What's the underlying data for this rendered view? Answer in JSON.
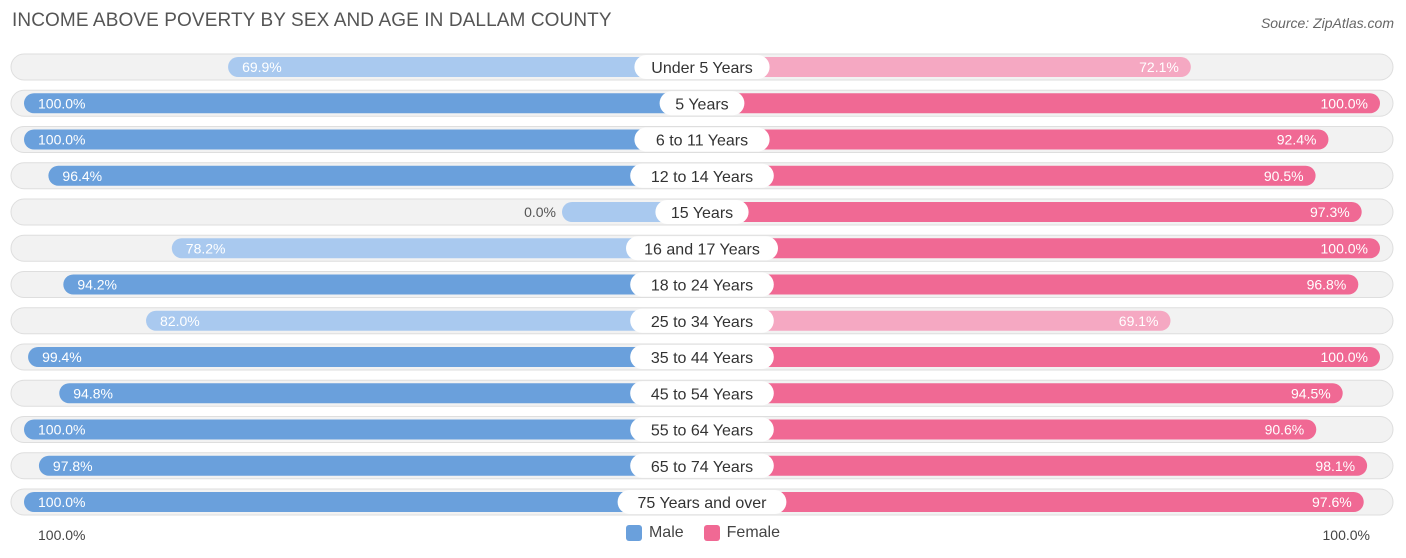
{
  "title": "INCOME ABOVE POVERTY BY SEX AND AGE IN DALLAM COUNTY",
  "source": "Source: ZipAtlas.com",
  "axis": {
    "left_label": "100.0%",
    "right_label": "100.0%"
  },
  "legend": {
    "male_label": "Male",
    "female_label": "Female"
  },
  "colors": {
    "male_strong": "#6aa0dc",
    "male_light": "#a9c9ef",
    "female_strong": "#f06994",
    "female_light": "#f5a8c2",
    "track": "#eeeeee"
  },
  "chart_data": {
    "type": "bar",
    "orientation": "horizontal-diverging",
    "title": "INCOME ABOVE POVERTY BY SEX AND AGE IN DALLAM COUNTY",
    "xlim": [
      0,
      100
    ],
    "categories": [
      "Under 5 Years",
      "5 Years",
      "6 to 11 Years",
      "12 to 14 Years",
      "15 Years",
      "16 and 17 Years",
      "18 to 24 Years",
      "25 to 34 Years",
      "35 to 44 Years",
      "45 to 54 Years",
      "55 to 64 Years",
      "65 to 74 Years",
      "75 Years and over"
    ],
    "series": [
      {
        "name": "Male",
        "values": [
          69.9,
          100.0,
          100.0,
          96.4,
          0.0,
          78.2,
          94.2,
          82.0,
          99.4,
          94.8,
          100.0,
          97.8,
          100.0
        ],
        "labels": [
          "69.9%",
          "100.0%",
          "100.0%",
          "96.4%",
          "0.0%",
          "78.2%",
          "94.2%",
          "82.0%",
          "99.4%",
          "94.8%",
          "100.0%",
          "97.8%",
          "100.0%"
        ]
      },
      {
        "name": "Female",
        "values": [
          72.1,
          100.0,
          92.4,
          90.5,
          97.3,
          100.0,
          96.8,
          69.1,
          100.0,
          94.5,
          90.6,
          98.1,
          97.6
        ],
        "labels": [
          "72.1%",
          "100.0%",
          "92.4%",
          "90.5%",
          "97.3%",
          "100.0%",
          "96.8%",
          "69.1%",
          "100.0%",
          "94.5%",
          "90.6%",
          "98.1%",
          "97.6%"
        ]
      }
    ]
  }
}
